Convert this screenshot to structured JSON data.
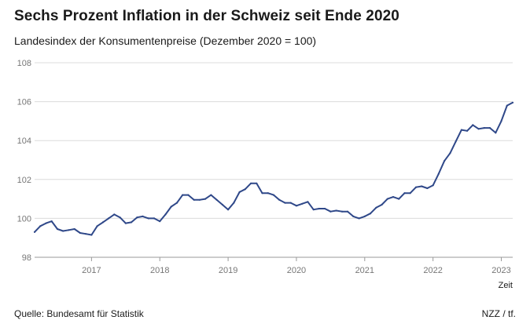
{
  "header": {
    "title": "Sechs Prozent Inflation in der Schweiz seit Ende 2020",
    "subtitle": "Landesindex der Konsumentenpreise (Dezember 2020 = 100)"
  },
  "footer": {
    "source": "Quelle: Bundesamt für Statistik",
    "credit": "NZZ / tf."
  },
  "colors": {
    "line": "#2f4889",
    "grid": "#dcdcdc",
    "axis": "#9a9a9a"
  },
  "chart_data": {
    "type": "line",
    "title": "Sechs Prozent Inflation in der Schweiz seit Ende 2020",
    "subtitle": "Landesindex der Konsumentenpreise (Dezember 2020 = 100)",
    "xlabel": "Zeit",
    "ylabel": "",
    "ylim": [
      98,
      108
    ],
    "xlim": [
      "2016-03",
      "2023-03"
    ],
    "y_ticks": [
      98,
      100,
      102,
      104,
      106,
      108
    ],
    "x_ticks": [
      "2017",
      "2018",
      "2019",
      "2020",
      "2021",
      "2022",
      "2023"
    ],
    "grid": true,
    "legend": "none",
    "series": [
      {
        "x": [
          "2016-03",
          "2016-04",
          "2016-05",
          "2016-06",
          "2016-07",
          "2016-08",
          "2016-09",
          "2016-10",
          "2016-11",
          "2016-12",
          "2017-01",
          "2017-02",
          "2017-03",
          "2017-04",
          "2017-05",
          "2017-06",
          "2017-07",
          "2017-08",
          "2017-09",
          "2017-10",
          "2017-11",
          "2017-12",
          "2018-01",
          "2018-02",
          "2018-03",
          "2018-04",
          "2018-05",
          "2018-06",
          "2018-07",
          "2018-08",
          "2018-09",
          "2018-10",
          "2018-11",
          "2018-12",
          "2019-01",
          "2019-02",
          "2019-03",
          "2019-04",
          "2019-05",
          "2019-06",
          "2019-07",
          "2019-08",
          "2019-09",
          "2019-10",
          "2019-11",
          "2019-12",
          "2020-01",
          "2020-02",
          "2020-03",
          "2020-04",
          "2020-05",
          "2020-06",
          "2020-07",
          "2020-08",
          "2020-09",
          "2020-10",
          "2020-11",
          "2020-12",
          "2021-01",
          "2021-02",
          "2021-03",
          "2021-04",
          "2021-05",
          "2021-06",
          "2021-07",
          "2021-08",
          "2021-09",
          "2021-10",
          "2021-11",
          "2021-12",
          "2022-01",
          "2022-02",
          "2022-03",
          "2022-04",
          "2022-05",
          "2022-06",
          "2022-07",
          "2022-08",
          "2022-09",
          "2022-10",
          "2022-11",
          "2022-12",
          "2023-01",
          "2023-02",
          "2023-03"
        ],
        "values": [
          99.3,
          99.6,
          99.75,
          99.85,
          99.45,
          99.35,
          99.4,
          99.45,
          99.25,
          99.2,
          99.15,
          99.6,
          99.8,
          100.0,
          100.2,
          100.05,
          99.75,
          99.8,
          100.05,
          100.1,
          100.0,
          100.0,
          99.85,
          100.2,
          100.6,
          100.8,
          101.2,
          101.2,
          100.95,
          100.95,
          101.0,
          101.2,
          100.95,
          100.7,
          100.45,
          100.8,
          101.35,
          101.5,
          101.8,
          101.8,
          101.3,
          101.3,
          101.2,
          100.95,
          100.8,
          100.8,
          100.65,
          100.75,
          100.85,
          100.45,
          100.5,
          100.5,
          100.35,
          100.4,
          100.35,
          100.35,
          100.1,
          100.0,
          100.1,
          100.25,
          100.55,
          100.7,
          101.0,
          101.1,
          101.0,
          101.3,
          101.3,
          101.6,
          101.65,
          101.55,
          101.7,
          102.3,
          102.95,
          103.35,
          103.95,
          104.55,
          104.5,
          104.8,
          104.6,
          104.65,
          104.65,
          104.4,
          105.0,
          105.8,
          105.95
        ]
      }
    ]
  }
}
